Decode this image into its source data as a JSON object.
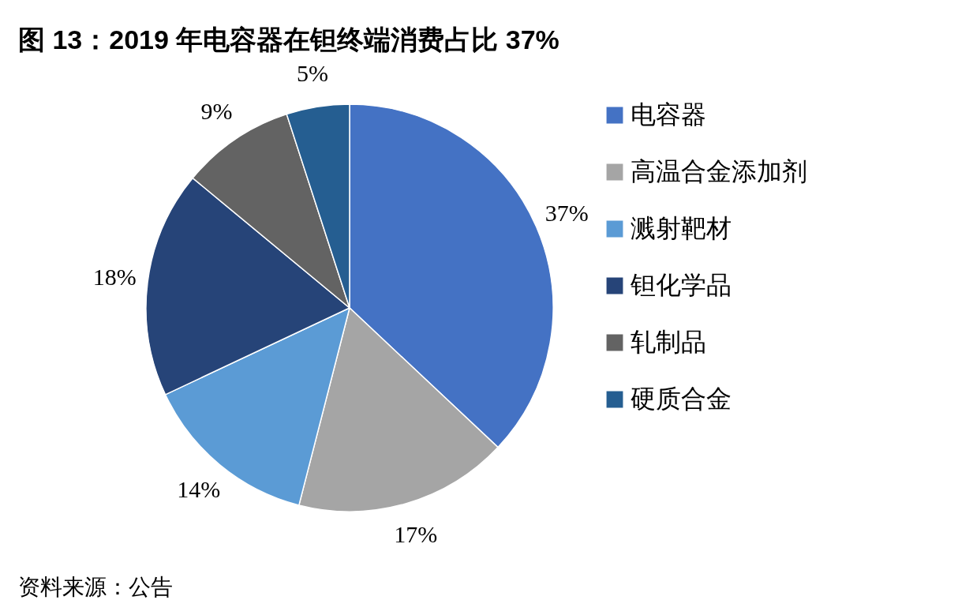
{
  "chart_data": {
    "type": "pie",
    "title": "图 13：2019 年电容器在钽终端消费占比 37%",
    "categories": [
      "电容器",
      "高温合金添加剂",
      "溅射靶材",
      "钽化学品",
      "轧制品",
      "硬质合金"
    ],
    "values": [
      37,
      17,
      14,
      18,
      9,
      5
    ],
    "colors": [
      "#4472c4",
      "#a5a5a5",
      "#5b9bd5",
      "#264478",
      "#636363",
      "#255e91"
    ],
    "value_labels": [
      "37%",
      "17%",
      "14%",
      "18%",
      "9%",
      "5%"
    ],
    "legend": "right",
    "annotations": [
      "资料来源：公告"
    ]
  }
}
